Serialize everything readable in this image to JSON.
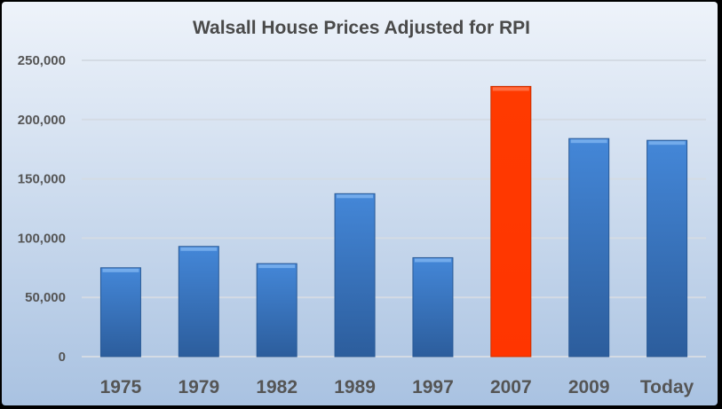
{
  "chart_data": {
    "type": "bar",
    "title": "Walsall House Prices Adjusted for RPI",
    "xlabel": "",
    "ylabel": "",
    "categories": [
      "1975",
      "1979",
      "1982",
      "1989",
      "1997",
      "2007",
      "2009",
      "Today"
    ],
    "values": [
      75000,
      93000,
      78500,
      137500,
      83500,
      228000,
      184000,
      182500
    ],
    "ylim": [
      0,
      250000
    ],
    "yticks": [
      0,
      50000,
      100000,
      150000,
      200000,
      250000
    ],
    "ytick_labels": [
      "0",
      "50,000",
      "100,000",
      "150,000",
      "200,000",
      "250,000"
    ],
    "grid": true,
    "legend": "none",
    "highlight_category": "2007",
    "colors": {
      "bar": "#3d7fcf",
      "highlight": "#ff3a00",
      "title": "#4a4a4a",
      "ticks": "#555555"
    }
  }
}
